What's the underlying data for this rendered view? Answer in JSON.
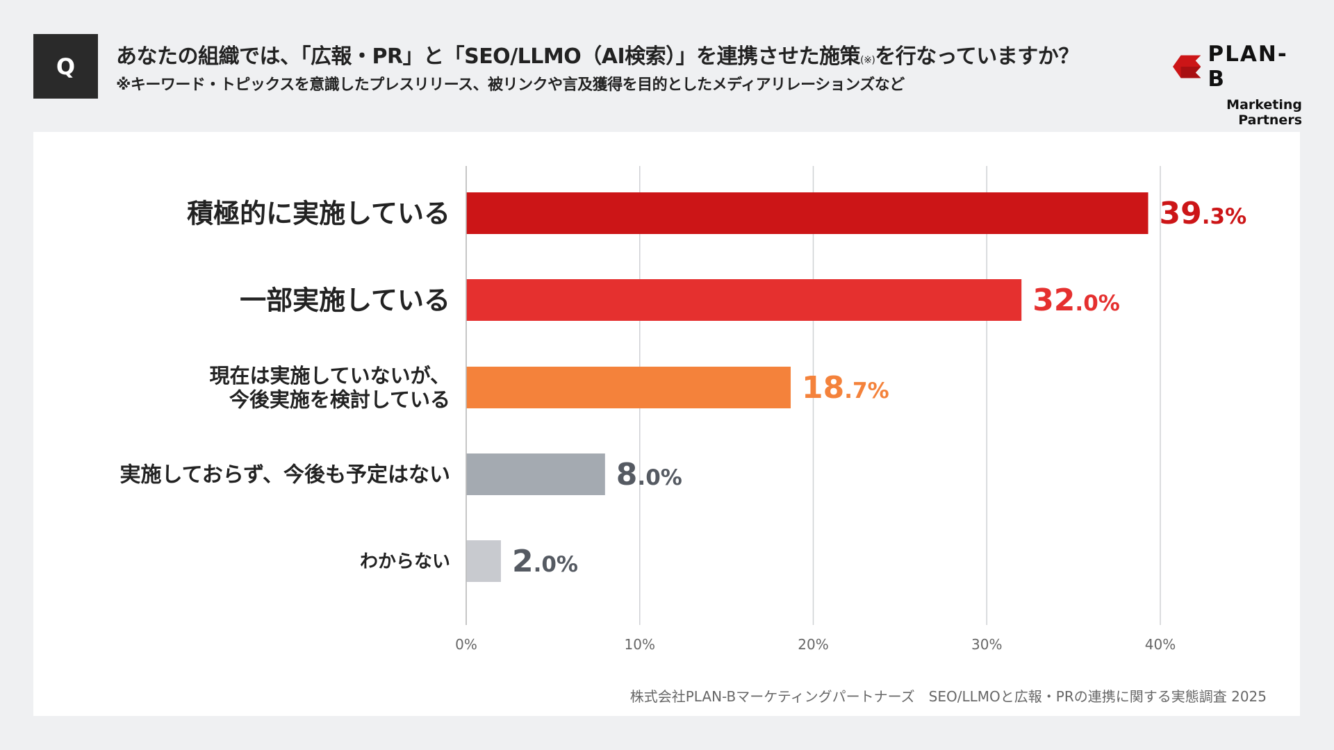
{
  "header": {
    "q_label": "Q",
    "title": "あなたの組織では、「広報・PR」と「SEO/LLMO（AI検索）」を連携させた施策",
    "title_note": "(※)",
    "title_end": "を行なっていますか？",
    "subtitle": "※キーワード・トピックスを意識したプレスリリース、被リンクや言及獲得を目的としたメディアリレーションズなど"
  },
  "logo": {
    "name": "PLAN-B",
    "tagline": "Marketing Partners",
    "color": "#cc1517"
  },
  "footer": "株式会社PLAN-Bマーケティングパートナーズ　SEO/LLMOと広報・PRの連携に関する実態調査 2025",
  "chart_data": {
    "type": "bar",
    "orientation": "horizontal",
    "categories": [
      [
        "積極的に実施している"
      ],
      [
        "一部実施している"
      ],
      [
        "現在は実施していないが、",
        "今後実施を検討している"
      ],
      [
        "実施しておらず、今後も予定はない"
      ],
      [
        "わからない"
      ]
    ],
    "values": [
      39.3,
      32.0,
      18.7,
      8.0,
      2.0
    ],
    "value_labels": [
      [
        "39",
        ".3%"
      ],
      [
        "32",
        ".0%"
      ],
      [
        "18",
        ".7%"
      ],
      [
        "8",
        ".0%"
      ],
      [
        "2",
        ".0%"
      ]
    ],
    "colors": [
      "#cc1517",
      "#e5302f",
      "#f4823b",
      "#a4aab1",
      "#c8cacf"
    ],
    "label_colors": [
      "#cc1517",
      "#e5302f",
      "#f4823b",
      "#555a62",
      "#555a62"
    ],
    "xlim": [
      0,
      40
    ],
    "ticks": [
      0,
      10,
      20,
      30,
      40
    ],
    "tick_labels": [
      "0%",
      "10%",
      "20%",
      "30%",
      "40%"
    ],
    "grid": true
  }
}
